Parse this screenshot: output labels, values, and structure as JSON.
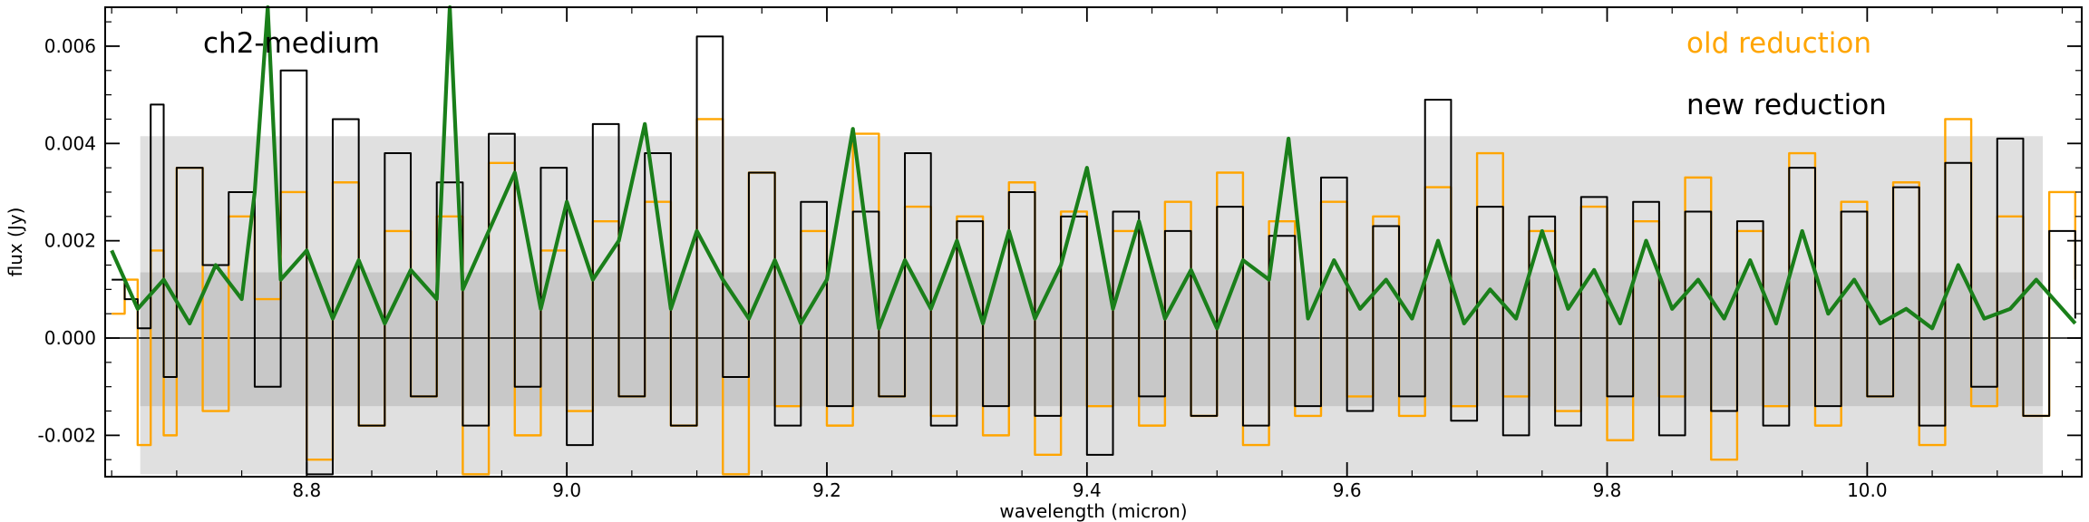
{
  "chart_data": {
    "type": "line",
    "title": "",
    "xlabel": "wavelength (micron)",
    "ylabel": "flux (Jy)",
    "xlim": [
      8.645,
      10.165
    ],
    "ylim": [
      -0.00285,
      0.0068
    ],
    "x_ticks": [
      8.8,
      9.0,
      9.2,
      9.4,
      9.6,
      9.8,
      10.0
    ],
    "x_tick_labels": [
      "8.8",
      "9.0",
      "9.2",
      "9.4",
      "9.6",
      "9.8",
      "10.0"
    ],
    "y_ticks": [
      -0.002,
      0.0,
      0.002,
      0.004,
      0.006
    ],
    "y_tick_labels": [
      "-0.002",
      "0.000",
      "0.002",
      "0.004",
      "0.006"
    ],
    "grid": false,
    "annotations": {
      "channel": "ch2-medium",
      "old_label": "old reduction",
      "new_label": "new reduction"
    },
    "colors": {
      "old": "#FFA500",
      "new": "#000000",
      "model": "#1A7F1A",
      "band_outer": "#E0E0E0",
      "band_inner": "#C8C8C8"
    },
    "bands": [
      {
        "x": [
          8.672,
          10.135
        ],
        "y": [
          -0.0028,
          0.00415
        ],
        "role": "outer"
      },
      {
        "x": [
          8.672,
          10.135
        ],
        "y": [
          -0.0014,
          0.00135
        ],
        "role": "inner"
      }
    ],
    "series": [
      {
        "role": "old",
        "x": [
          8.65,
          8.66,
          8.67,
          8.68,
          8.69,
          8.7,
          8.72,
          8.74,
          8.76,
          8.78,
          8.8,
          8.82,
          8.84,
          8.86,
          8.88,
          8.9,
          8.92,
          8.94,
          8.96,
          8.98,
          9.0,
          9.02,
          9.04,
          9.06,
          9.08,
          9.1,
          9.12,
          9.14,
          9.16,
          9.18,
          9.2,
          9.22,
          9.24,
          9.26,
          9.28,
          9.3,
          9.32,
          9.34,
          9.36,
          9.38,
          9.4,
          9.42,
          9.44,
          9.46,
          9.48,
          9.5,
          9.52,
          9.54,
          9.56,
          9.58,
          9.6,
          9.62,
          9.64,
          9.66,
          9.68,
          9.7,
          9.72,
          9.74,
          9.76,
          9.78,
          9.8,
          9.82,
          9.84,
          9.86,
          9.88,
          9.9,
          9.92,
          9.94,
          9.96,
          9.98,
          10.0,
          10.02,
          10.04,
          10.06,
          10.08,
          10.1,
          10.12,
          10.14,
          10.16
        ],
        "y": [
          0.0005,
          0.0012,
          -0.0022,
          0.0018,
          -0.002,
          0.0035,
          -0.0015,
          0.0025,
          0.0008,
          0.003,
          -0.0025,
          0.0032,
          -0.0018,
          0.0022,
          -0.0012,
          0.0025,
          -0.0028,
          0.0036,
          -0.002,
          0.0018,
          -0.0015,
          0.0024,
          -0.0012,
          0.0028,
          -0.0018,
          0.0045,
          -0.0028,
          0.0034,
          -0.0014,
          0.0022,
          -0.0018,
          0.0042,
          -0.0012,
          0.0027,
          -0.0016,
          0.0025,
          -0.002,
          0.0032,
          -0.0024,
          0.0026,
          -0.0014,
          0.0022,
          -0.0018,
          0.0028,
          -0.0016,
          0.0034,
          -0.0022,
          0.0024,
          -0.0016,
          0.0028,
          -0.0012,
          0.0025,
          -0.0016,
          0.0031,
          -0.0014,
          0.0038,
          -0.0012,
          0.0022,
          -0.0015,
          0.0027,
          -0.0021,
          0.0024,
          -0.0012,
          0.0033,
          -0.0025,
          0.0022,
          -0.0014,
          0.0038,
          -0.0018,
          0.0028,
          -0.0012,
          0.0032,
          -0.0022,
          0.0045,
          -0.0014,
          0.0025,
          -0.0016,
          0.003,
          0.0012
        ]
      },
      {
        "role": "new",
        "x": [
          8.65,
          8.66,
          8.67,
          8.68,
          8.69,
          8.7,
          8.72,
          8.74,
          8.76,
          8.78,
          8.8,
          8.82,
          8.84,
          8.86,
          8.88,
          8.9,
          8.92,
          8.94,
          8.96,
          8.98,
          9.0,
          9.02,
          9.04,
          9.06,
          9.08,
          9.1,
          9.12,
          9.14,
          9.16,
          9.18,
          9.2,
          9.22,
          9.24,
          9.26,
          9.28,
          9.3,
          9.32,
          9.34,
          9.36,
          9.38,
          9.4,
          9.42,
          9.44,
          9.46,
          9.48,
          9.5,
          9.52,
          9.54,
          9.56,
          9.58,
          9.6,
          9.62,
          9.64,
          9.66,
          9.68,
          9.7,
          9.72,
          9.74,
          9.76,
          9.78,
          9.8,
          9.82,
          9.84,
          9.86,
          9.88,
          9.9,
          9.92,
          9.94,
          9.96,
          9.98,
          10.0,
          10.02,
          10.04,
          10.06,
          10.08,
          10.1,
          10.12,
          10.14,
          10.16
        ],
        "y": [
          0.0012,
          0.0008,
          0.0002,
          0.0048,
          -0.0008,
          0.0035,
          0.0015,
          0.003,
          -0.001,
          0.0055,
          -0.0028,
          0.0045,
          -0.0018,
          0.0038,
          -0.0012,
          0.0032,
          -0.0018,
          0.0042,
          -0.001,
          0.0035,
          -0.0022,
          0.0044,
          -0.0012,
          0.0038,
          -0.0018,
          0.0062,
          -0.0008,
          0.0034,
          -0.0018,
          0.0028,
          -0.0014,
          0.0026,
          -0.0012,
          0.0038,
          -0.0018,
          0.0024,
          -0.0014,
          0.003,
          -0.0016,
          0.0025,
          -0.0024,
          0.0026,
          -0.0012,
          0.0022,
          -0.0016,
          0.0027,
          -0.0018,
          0.0021,
          -0.0014,
          0.0033,
          -0.0015,
          0.0023,
          -0.0012,
          0.0049,
          -0.0017,
          0.0027,
          -0.002,
          0.0025,
          -0.0018,
          0.0029,
          -0.0012,
          0.0028,
          -0.002,
          0.0026,
          -0.0015,
          0.0024,
          -0.0018,
          0.0035,
          -0.0014,
          0.0026,
          -0.0012,
          0.0031,
          -0.0018,
          0.0036,
          -0.001,
          0.0041,
          -0.0016,
          0.0022,
          0.0004
        ]
      },
      {
        "role": "model",
        "x": [
          8.65,
          8.67,
          8.69,
          8.71,
          8.73,
          8.75,
          8.76,
          8.77,
          8.78,
          8.8,
          8.82,
          8.84,
          8.86,
          8.88,
          8.9,
          8.91,
          8.92,
          8.94,
          8.96,
          8.98,
          9.0,
          9.02,
          9.04,
          9.06,
          9.08,
          9.1,
          9.12,
          9.14,
          9.16,
          9.18,
          9.2,
          9.22,
          9.24,
          9.26,
          9.28,
          9.3,
          9.32,
          9.34,
          9.36,
          9.38,
          9.4,
          9.42,
          9.44,
          9.46,
          9.48,
          9.5,
          9.52,
          9.54,
          9.555,
          9.57,
          9.59,
          9.61,
          9.63,
          9.65,
          9.67,
          9.69,
          9.71,
          9.73,
          9.75,
          9.77,
          9.79,
          9.81,
          9.83,
          9.85,
          9.87,
          9.89,
          9.91,
          9.93,
          9.95,
          9.97,
          9.99,
          10.01,
          10.03,
          10.05,
          10.07,
          10.09,
          10.11,
          10.13,
          10.16
        ],
        "y": [
          0.0018,
          0.0006,
          0.0012,
          0.0003,
          0.0015,
          0.0008,
          0.003,
          0.0068,
          0.0012,
          0.0018,
          0.0004,
          0.0016,
          0.0003,
          0.0014,
          0.0008,
          0.0068,
          0.001,
          0.0022,
          0.0034,
          0.0006,
          0.0028,
          0.0012,
          0.002,
          0.0044,
          0.0006,
          0.0022,
          0.0012,
          0.0004,
          0.0016,
          0.0003,
          0.0012,
          0.0043,
          0.0002,
          0.0016,
          0.0006,
          0.002,
          0.0003,
          0.0022,
          0.0004,
          0.0015,
          0.0035,
          0.0006,
          0.0024,
          0.0004,
          0.0014,
          0.0002,
          0.0016,
          0.0012,
          0.0041,
          0.0004,
          0.0016,
          0.0006,
          0.0012,
          0.0004,
          0.002,
          0.0003,
          0.001,
          0.0004,
          0.0022,
          0.0006,
          0.0014,
          0.0003,
          0.002,
          0.0006,
          0.0012,
          0.0004,
          0.0016,
          0.0003,
          0.0022,
          0.0005,
          0.0012,
          0.0003,
          0.0006,
          0.0002,
          0.0015,
          0.0004,
          0.0006,
          0.0012,
          0.0003
        ]
      }
    ]
  }
}
